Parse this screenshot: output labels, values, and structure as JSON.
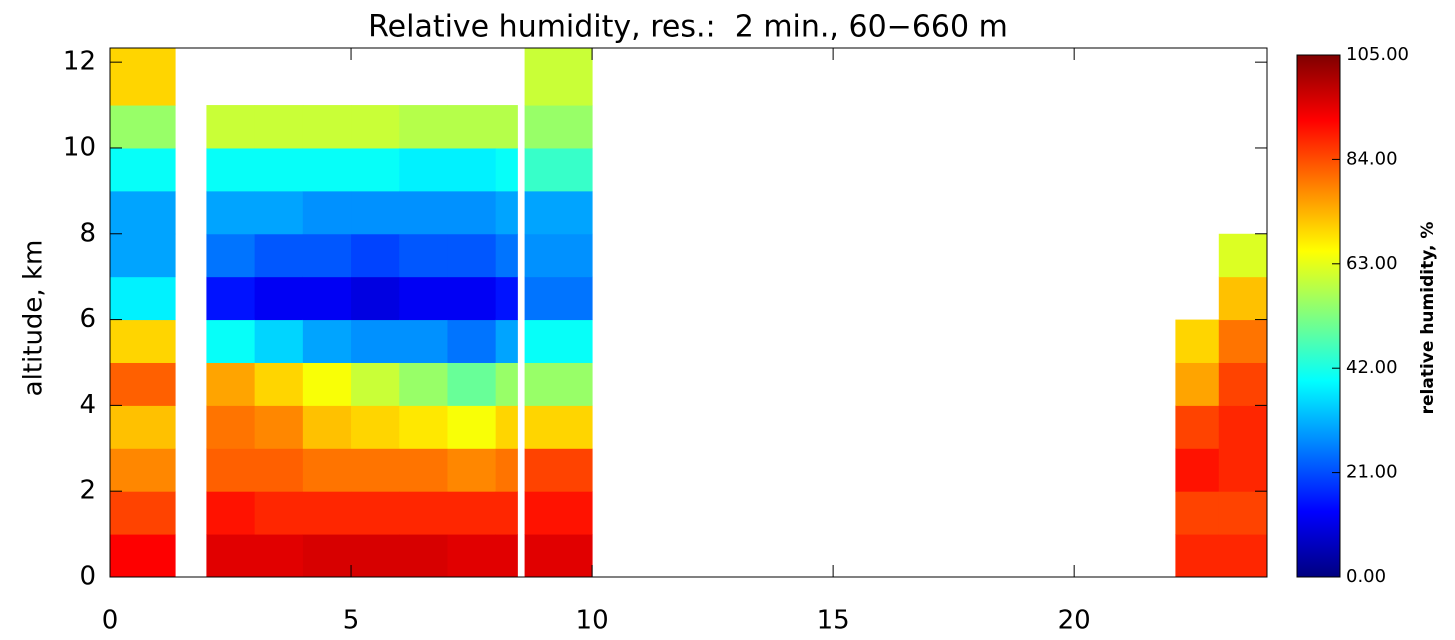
{
  "chart_data": {
    "type": "heatmap",
    "title": "Relative humidity, res.:  2 min., 60−660 m",
    "ylabel": "altitude, km",
    "colorbar_label": "relative humidity, %",
    "x_edges": [
      0,
      1.35,
      2,
      3,
      4,
      5,
      6,
      7,
      8,
      8.45,
      8.6,
      10,
      22.1,
      23,
      24.1
    ],
    "y_edges": [
      0,
      1,
      2,
      3,
      4,
      5,
      6,
      7,
      8,
      9,
      10,
      11,
      12.33
    ],
    "values": [
      [
        92,
        85,
        78,
        72,
        82,
        70,
        38,
        30,
        30,
        40,
        55,
        70
      ],
      [
        null,
        null,
        null,
        null,
        null,
        null,
        null,
        null,
        null,
        null,
        null,
        null
      ],
      [
        95,
        90,
        82,
        80,
        75,
        40,
        15,
        25,
        30,
        40,
        60,
        null
      ],
      [
        95,
        88,
        82,
        78,
        70,
        35,
        12,
        22,
        30,
        40,
        60,
        null
      ],
      [
        96,
        88,
        80,
        72,
        65,
        30,
        12,
        22,
        28,
        40,
        60,
        null
      ],
      [
        96,
        88,
        80,
        70,
        60,
        28,
        10,
        20,
        28,
        40,
        60,
        null
      ],
      [
        96,
        88,
        80,
        68,
        55,
        28,
        12,
        22,
        28,
        38,
        58,
        null
      ],
      [
        95,
        88,
        78,
        65,
        50,
        25,
        12,
        22,
        28,
        38,
        58,
        null
      ],
      [
        95,
        88,
        80,
        70,
        55,
        30,
        15,
        25,
        30,
        40,
        58,
        null
      ],
      [
        null,
        null,
        null,
        null,
        null,
        null,
        null,
        null,
        null,
        null,
        null,
        null
      ],
      [
        95,
        90,
        85,
        70,
        55,
        40,
        25,
        28,
        30,
        45,
        55,
        60
      ],
      [
        null,
        null,
        null,
        null,
        null,
        null,
        null,
        null,
        null,
        null,
        null,
        null
      ],
      [
        88,
        85,
        90,
        85,
        75,
        70,
        null,
        null,
        null,
        null,
        null,
        null
      ],
      [
        88,
        85,
        88,
        88,
        85,
        80,
        72,
        62,
        null,
        null,
        null,
        null
      ]
    ],
    "xlim": [
      0,
      24
    ],
    "xticks": [
      0,
      5,
      10,
      15,
      20
    ],
    "ylim": [
      0,
      12.33
    ],
    "yticks": [
      0,
      2,
      4,
      6,
      8,
      10,
      12
    ],
    "zlim": [
      0,
      105
    ],
    "zticks": [
      {
        "value": 0,
        "label": "0.00"
      },
      {
        "value": 21,
        "label": "21.00"
      },
      {
        "value": 42,
        "label": "42.00"
      },
      {
        "value": 63,
        "label": "63.00"
      },
      {
        "value": 84,
        "label": "84.00"
      },
      {
        "value": 105,
        "label": "105.00"
      }
    ],
    "colormap": [
      "#00007f",
      "#0000ff",
      "#0080ff",
      "#00ffff",
      "#80ff80",
      "#ffff00",
      "#ff8000",
      "#ff0000",
      "#7f0000"
    ]
  }
}
